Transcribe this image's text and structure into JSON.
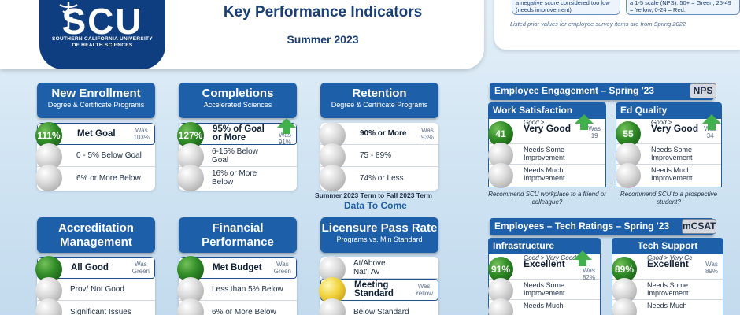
{
  "header": {
    "logo_text": "SCU",
    "logo_subtitle_1": "SOUTHERN CALIFORNIA UNIVERSITY",
    "logo_subtitle_2": "OF HEALTH SCIENCES",
    "title": "Key Performance Indicators",
    "subtitle": "Summer 2023"
  },
  "notes": {
    "left": "a negative score considered too low (needs improvement)",
    "right": "a 1-5 scale (NPS). 50+ = Green, 25-49 = Yellow, 0-24 = Red.",
    "footer": "Listed prior values for employee survey items are from Spring 2022"
  },
  "kpis": [
    {
      "title": "New Enrollment",
      "subtitle": "Degree & Certificate Programs",
      "badge": "111%",
      "was_label": "Was",
      "was_value": "103%",
      "rows": [
        "Met Goal",
        "0 - 5% Below Goal",
        "6% or More Below"
      ]
    },
    {
      "title": "Completions",
      "subtitle": "Accelerated Sciences",
      "badge": "127%",
      "was_label": "Was",
      "was_value": "91%",
      "rows": [
        "95% of Goal or More",
        "6-15% Below Goal",
        "16% or More Below"
      ]
    },
    {
      "title": "Retention",
      "subtitle": "Degree & Certificate Programs",
      "was_label": "Was",
      "was_value": "93%",
      "rows": [
        "90% or More",
        "75 - 89%",
        "74% or Less"
      ],
      "term_note": "Summer 2023 Term to Fall 2023 Term",
      "data_note": "Data To Come"
    },
    {
      "title_1": "Accreditation",
      "title_2": "Management",
      "was_label": "Was",
      "was_value": "Green",
      "rows": [
        "All Good",
        "Prov/ Not Good",
        "Significant Issues"
      ]
    },
    {
      "title_1": "Financial",
      "title_2": "Performance",
      "was_label": "Was",
      "was_value": "Green",
      "rows": [
        "Met Budget",
        "Less than 5% Below",
        "6% or More Below"
      ]
    },
    {
      "title": "Licensure Pass Rate",
      "subtitle": "Programs vs. Min Standard",
      "was_label": "Was",
      "was_value": "Yellow",
      "rows": [
        "At/Above Nat'l Av",
        "Meeting Standard",
        "Below Standard"
      ]
    }
  ],
  "engagement": {
    "title": "Employee Engagement – Spring '23",
    "badge": "NPS",
    "panels": [
      {
        "title": "Work Satisfaction",
        "score": "41",
        "good_small": "Good >",
        "good": "Very Good",
        "was_label": "Was",
        "was_value": "19",
        "rows": [
          "Needs Some Improvement",
          "Needs Much Improvement"
        ],
        "caption": "Recommend SCU workplace to a friend or colleague?"
      },
      {
        "title": "Ed Quality",
        "score": "55",
        "good_small": "Good >",
        "good": "Very Good",
        "was_label": "Was",
        "was_value": "34",
        "rows": [
          "Needs Some Improvement",
          "Needs Much Improvement"
        ],
        "caption": "Recommend SCU to a prospective student?"
      }
    ]
  },
  "tech": {
    "title": "Employees – Tech Ratings – Spring '23",
    "badge": "mCSAT",
    "panels": [
      {
        "title": "Infrastructure",
        "score": "91%",
        "good_small": "Good > Very Good",
        "good": "Excellent",
        "was_label": "Was",
        "was_value": "82%",
        "rows": [
          "Needs Some Improvement",
          "Needs Much"
        ]
      },
      {
        "title": "Tech Support",
        "score": "89%",
        "good_small": "Good > Very Gc",
        "good": "Excellent",
        "was_label": "Was",
        "was_value": "89%",
        "rows": [
          "Needs Some Improvement",
          "Needs Much"
        ]
      }
    ]
  },
  "colors": {
    "header_blue": "#1d5fa8",
    "logo_blue": "#0f3e80",
    "green": "#2f8a26",
    "yellow": "#f0d23a",
    "arrow_green": "#43b04e"
  }
}
